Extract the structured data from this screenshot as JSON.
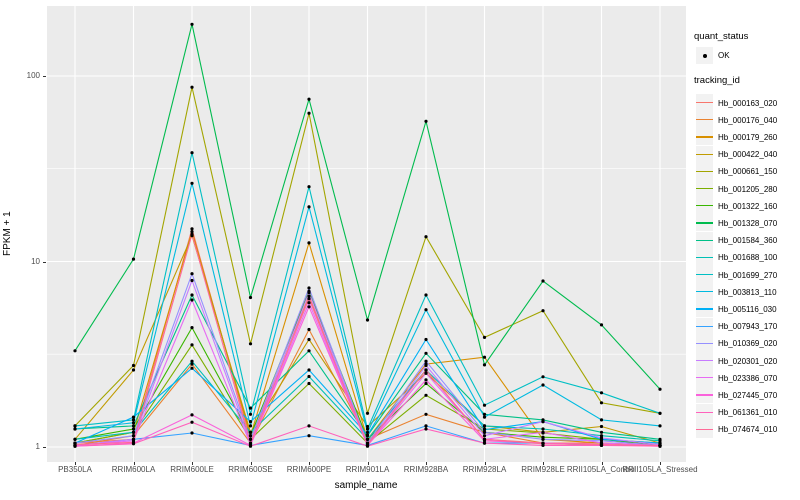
{
  "figure": {
    "background": "#FFFFFF",
    "panel_background": "#EBEBEB",
    "grid_color": "#FFFFFF",
    "tick_color": "#333333",
    "tick_label_color": "#4D4D4D",
    "point_color": "#000000"
  },
  "axes": {
    "x_title": "sample_name",
    "y_title": "FPKM + 1",
    "y_tick_labels": [
      "1",
      "10",
      "100"
    ]
  },
  "legend": {
    "quant_title": "quant_status",
    "quant_items": [
      {
        "label": "OK",
        "marker": "black-point"
      }
    ],
    "tracking_title": "tracking_id"
  },
  "chart_data": {
    "type": "line",
    "title": "",
    "xlabel": "sample_name",
    "ylabel": "FPKM + 1",
    "y_scale": "log10",
    "y_ticks": [
      1,
      10,
      100
    ],
    "y_minor_ticks": [
      3.1623,
      31.623
    ],
    "ylim": [
      0.83,
      238
    ],
    "grid": true,
    "legend_position": "right",
    "marker": "black-point",
    "categories": [
      "PB350LA",
      "RRIM600LA",
      "RRIM600LE",
      "RRIM600SE",
      "RRIM600PE",
      "RRIM901LA",
      "RRIM928BA",
      "RRIM928LA",
      "RRIM928LE",
      "RRII105LA_Control",
      "RRII105LA_Stressed"
    ],
    "series": [
      {
        "name": "Hb_000163_020",
        "color": "#F8766D",
        "values": [
          1.05,
          1.1,
          15.0,
          1.1,
          6.5,
          1.05,
          2.6,
          1.1,
          1.05,
          1.05,
          1.02
        ]
      },
      {
        "name": "Hb_000176_040",
        "color": "#EA8331",
        "values": [
          1.02,
          1.15,
          2.8,
          1.05,
          4.3,
          1.1,
          1.5,
          1.2,
          1.05,
          1.02,
          1.02
        ]
      },
      {
        "name": "Hb_000179_260",
        "color": "#D89000",
        "values": [
          1.05,
          1.2,
          14.5,
          1.15,
          12.6,
          1.1,
          2.8,
          3.05,
          1.1,
          1.05,
          1.02
        ]
      },
      {
        "name": "Hb_000422_040",
        "color": "#C09B00",
        "values": [
          1.1,
          2.6,
          13.8,
          1.2,
          3.8,
          1.29,
          2.5,
          1.3,
          1.2,
          1.29,
          1.05
        ]
      },
      {
        "name": "Hb_000661_150",
        "color": "#A3A500",
        "values": [
          1.3,
          2.75,
          87,
          3.6,
          63,
          1.52,
          13.6,
          3.9,
          5.43,
          1.73,
          1.52
        ]
      },
      {
        "name": "Hb_001205_280",
        "color": "#7CAE00",
        "values": [
          1.05,
          1.2,
          3.55,
          1.1,
          2.2,
          1.05,
          1.9,
          1.25,
          1.19,
          1.1,
          1.05
        ]
      },
      {
        "name": "Hb_001322_160",
        "color": "#39B600",
        "values": [
          1.1,
          1.25,
          4.4,
          1.15,
          6.9,
          1.1,
          2.2,
          1.2,
          1.13,
          1.1,
          1.02
        ]
      },
      {
        "name": "Hb_001328_070",
        "color": "#00BB4E",
        "values": [
          3.3,
          10.3,
          190,
          6.4,
          75,
          4.84,
          57,
          2.77,
          7.85,
          4.55,
          2.05
        ]
      },
      {
        "name": "Hb_001584_360",
        "color": "#00C087",
        "values": [
          1.25,
          1.3,
          6.6,
          1.62,
          3.3,
          1.15,
          3.2,
          1.5,
          1.4,
          1.2,
          1.1
        ]
      },
      {
        "name": "Hb_001688_100",
        "color": "#00C0B5",
        "values": [
          1.1,
          1.2,
          2.9,
          1.2,
          2.4,
          1.1,
          2.6,
          1.3,
          1.25,
          1.15,
          1.08
        ]
      },
      {
        "name": "Hb_001699_270",
        "color": "#00BFC4",
        "values": [
          1.3,
          1.4,
          38.6,
          1.5,
          25.3,
          1.25,
          6.6,
          1.68,
          2.39,
          1.96,
          1.52
        ]
      },
      {
        "name": "Hb_003813_110",
        "color": "#00BAE0",
        "values": [
          1.25,
          1.35,
          26.4,
          1.3,
          19.7,
          1.2,
          5.5,
          1.45,
          2.16,
          1.4,
          1.3
        ]
      },
      {
        "name": "Hb_005116_030",
        "color": "#00B0F6",
        "values": [
          1.05,
          1.45,
          2.66,
          1.37,
          2.6,
          1.16,
          3.8,
          1.24,
          1.37,
          1.1,
          1.05
        ]
      },
      {
        "name": "Hb_007943_170",
        "color": "#35A2FF",
        "values": [
          1.02,
          1.1,
          1.19,
          1.02,
          1.15,
          1.02,
          1.3,
          1.05,
          1.05,
          1.02,
          1.02
        ]
      },
      {
        "name": "Hb_010369_020",
        "color": "#9590FF",
        "values": [
          1.05,
          1.15,
          8.6,
          1.1,
          7.2,
          1.05,
          2.9,
          1.2,
          1.1,
          1.08,
          1.02
        ]
      },
      {
        "name": "Hb_020301_020",
        "color": "#C77CFF",
        "values": [
          1.02,
          1.1,
          7.9,
          1.05,
          6.8,
          1.02,
          2.75,
          1.15,
          1.37,
          1.12,
          1.03
        ]
      },
      {
        "name": "Hb_023386_070",
        "color": "#E76BF3",
        "values": [
          1.02,
          1.08,
          6.2,
          1.03,
          6.0,
          1.02,
          2.5,
          1.1,
          1.2,
          1.05,
          1.02
        ]
      },
      {
        "name": "Hb_027445_070",
        "color": "#FA62DB",
        "values": [
          1.01,
          1.05,
          1.49,
          1.02,
          5.7,
          1.02,
          2.3,
          1.08,
          1.05,
          1.03,
          1.01
        ]
      },
      {
        "name": "Hb_061361_010",
        "color": "#FF62BC",
        "values": [
          1.01,
          1.04,
          1.36,
          1.01,
          1.3,
          1.01,
          1.25,
          1.05,
          1.02,
          1.02,
          1.01
        ]
      },
      {
        "name": "Hb_074674_010",
        "color": "#FF6A98",
        "values": [
          1.03,
          1.06,
          14.0,
          1.05,
          6.3,
          1.03,
          2.6,
          1.1,
          1.04,
          1.03,
          1.02
        ]
      }
    ]
  }
}
